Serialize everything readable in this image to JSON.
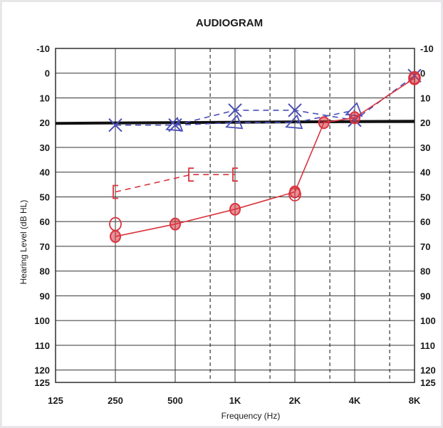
{
  "chart_data": {
    "type": "line",
    "title": "AUDIOGRAM",
    "xlabel": "Frequency (Hz)",
    "ylabel": "Hearing Level (dB HL)",
    "x_ticks": [
      {
        "value": 125,
        "label": "125"
      },
      {
        "value": 250,
        "label": "250"
      },
      {
        "value": 500,
        "label": "500"
      },
      {
        "value": 1000,
        "label": "1K"
      },
      {
        "value": 2000,
        "label": "2K"
      },
      {
        "value": 4000,
        "label": "4K"
      },
      {
        "value": 8000,
        "label": "8K"
      }
    ],
    "x_dashed_ticks": [
      750,
      1500,
      3000,
      6000
    ],
    "x_scale": "log2",
    "xlim": [
      125,
      8000
    ],
    "y_ticks": [
      -10,
      0,
      10,
      20,
      30,
      40,
      50,
      60,
      70,
      80,
      90,
      100,
      110,
      120,
      125
    ],
    "ylim": [
      -10,
      125
    ],
    "y_inverted": true,
    "grid": true,
    "reference_line": {
      "y": 20,
      "color": "#111111"
    },
    "series": [
      {
        "marker": "X",
        "color": "#4a4fb8",
        "style": "dashed",
        "points": [
          [
            250,
            21
          ],
          [
            500,
            21
          ],
          [
            1000,
            15
          ],
          [
            2000,
            15
          ],
          [
            4000,
            19
          ],
          [
            8000,
            1
          ]
        ]
      },
      {
        "marker": "triangle",
        "color": "#4a4fb8",
        "style": "dashed",
        "points": [
          [
            500,
            21
          ],
          [
            1000,
            20
          ],
          [
            2000,
            20
          ],
          [
            4000,
            15
          ]
        ]
      },
      {
        "marker": "O-filled",
        "color": "#d9343e",
        "style": "solid",
        "points": [
          [
            250,
            66
          ],
          [
            500,
            61
          ],
          [
            1000,
            55
          ],
          [
            2000,
            48
          ],
          [
            2800,
            20
          ],
          [
            4000,
            18
          ],
          [
            8000,
            2
          ]
        ]
      },
      {
        "marker": "O",
        "color": "#d9343e",
        "style": "none",
        "points": [
          [
            250,
            61
          ],
          [
            2000,
            49
          ],
          [
            8000,
            2
          ]
        ]
      },
      {
        "marker": "[",
        "color": "#d9343e",
        "style": "dashed",
        "points": [
          [
            250,
            48
          ],
          [
            600,
            41
          ],
          [
            1000,
            41
          ]
        ]
      }
    ]
  }
}
